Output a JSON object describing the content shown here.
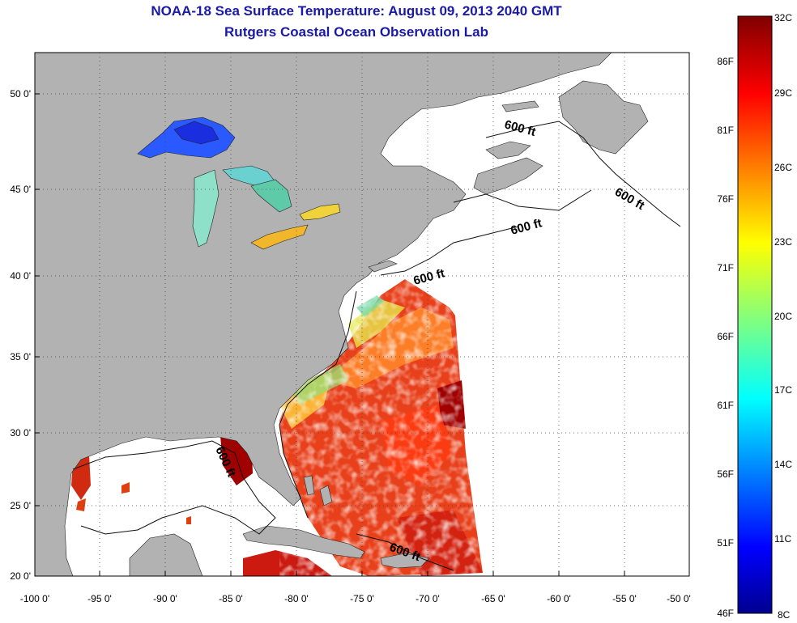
{
  "title_line1": "NOAA-18 Sea Surface Temperature:  August 09, 2013 2040 GMT",
  "title_line2": "Rutgers Coastal Ocean Observation Lab",
  "map": {
    "lon_range": [
      -100,
      -50
    ],
    "lat_range": [
      20,
      52.5
    ],
    "lon_ticks": [
      "-100 0'",
      "-95 0'",
      "-90 0'",
      "-85 0'",
      "-80 0'",
      "-75 0'",
      "-70 0'",
      "-65 0'",
      "-60 0'",
      "-55 0'",
      "-50 0'"
    ],
    "lat_ticks": [
      "20 0'",
      "25 0'",
      "30 0'",
      "35 0'",
      "40 0'",
      "45 0'",
      "50 0'"
    ],
    "grid": "dotted",
    "land_color": "#b2b2b2",
    "no_data_color": "#ffffff",
    "isobath_labels": [
      "600 ft",
      "600 ft",
      "600 ft",
      "600 ft",
      "600 ft",
      "600 ft"
    ]
  },
  "colorbar": {
    "celsius_labels": [
      "32C",
      "29C",
      "26C",
      "23C",
      "20C",
      "17C",
      "14C",
      "11C",
      "8C"
    ],
    "fahrenheit_labels": [
      "86F",
      "81F",
      "76F",
      "71F",
      "66F",
      "61F",
      "56F",
      "51F",
      "46F"
    ],
    "colormap": "jet",
    "range_c": [
      8,
      32
    ]
  }
}
